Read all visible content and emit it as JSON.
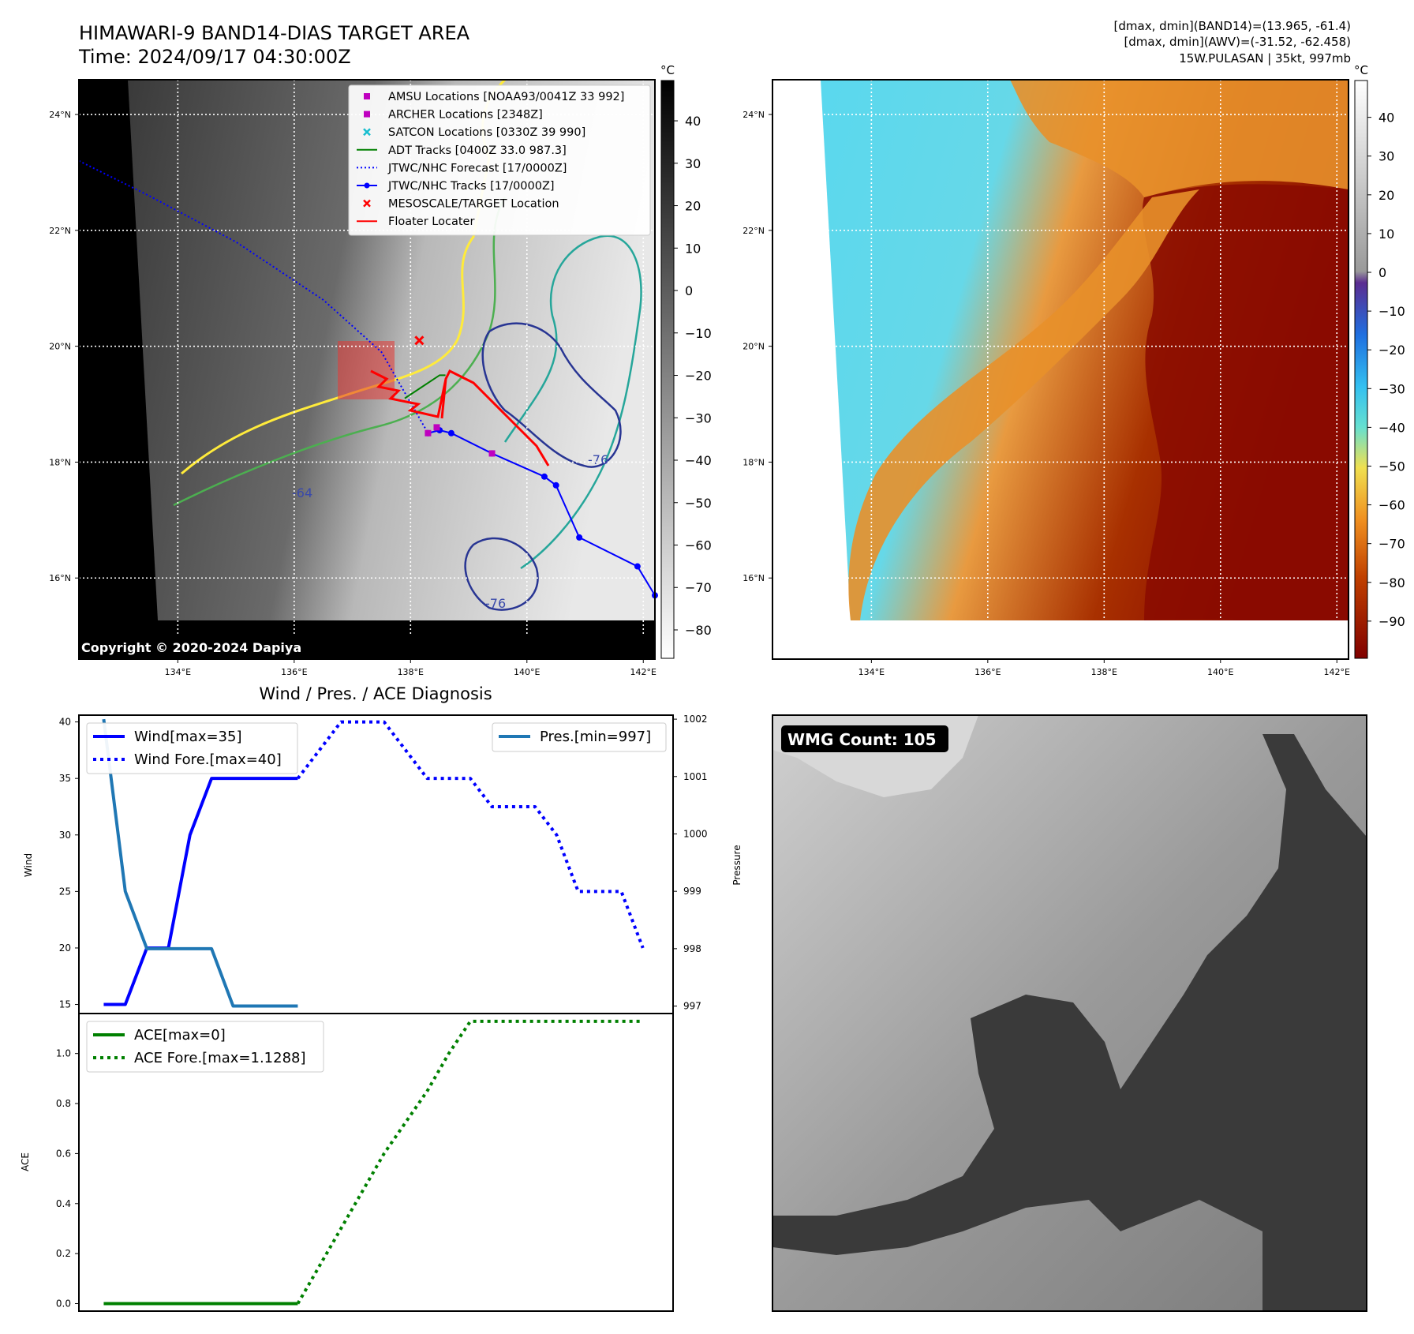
{
  "header": {
    "title_line1": "HIMAWARI-9 BAND14-DIAS TARGET AREA",
    "title_line2": "Time: 2024/09/17 04:30:00Z",
    "stats_line1": "[dmax, dmin](BAND14)=(13.965, -61.4)",
    "stats_line2": "[dmax, dmin](AWV)=(-31.52, -62.458)",
    "stats_line3": "15W.PULASAN | 35kt, 997mb",
    "copyright": "Copyright © 2020-2024 Dapiya"
  },
  "colors": {
    "wind": "#0000ff",
    "pressure": "#1f77b4",
    "ace": "#008000",
    "forecast_track": "#0000ff",
    "adt": "#008000",
    "amsu": "#bf00bf",
    "satcon": "#17becf",
    "target": "#ff0000"
  },
  "chart_data": [
    {
      "type": "heatmap",
      "panel": "ir-greyscale-map",
      "colorbar_unit": "°C",
      "colorbar_ticks": [
        40,
        30,
        20,
        10,
        0,
        -10,
        -20,
        -30,
        -40,
        -50,
        -60,
        -70,
        -80
      ],
      "xticks": [
        "134°E",
        "136°E",
        "138°E",
        "140°E",
        "142°E"
      ],
      "yticks": [
        "24°N",
        "22°N",
        "20°N",
        "18°N",
        "16°N"
      ],
      "xlim": [
        132.3,
        142.2
      ],
      "ylim": [
        14.6,
        24.6
      ],
      "grid": true,
      "legend": {
        "position": "top-right",
        "entries": [
          "AMSU Locations [NOAA93/0041Z 33 992]",
          "ARCHER Locations [2348Z]",
          "SATCON Locations [0330Z 39 990]",
          "ADT Tracks [0400Z 33.0 987.3]",
          "JTWC/NHC Forecast [17/0000Z]",
          "JTWC/NHC Tracks [17/0000Z]",
          "MESOSCALE/TARGET Location",
          "Floater Locater"
        ]
      },
      "jtwc_track": {
        "lon": [
          138.3,
          138.5,
          138.7,
          139.4,
          140.3,
          140.5,
          140.9,
          141.9,
          142.2
        ],
        "lat": [
          18.5,
          18.55,
          18.5,
          18.15,
          17.75,
          17.6,
          16.7,
          16.2,
          15.7
        ]
      },
      "jtwc_forecast": {
        "lon": [
          132.3,
          133.5,
          135.0,
          136.5,
          137.5,
          138.3
        ],
        "lat": [
          23.2,
          22.6,
          21.8,
          20.8,
          19.9,
          18.5
        ]
      },
      "adt_track": {
        "lon": [
          137.9,
          138.2,
          138.5,
          138.6
        ],
        "lat": [
          19.1,
          19.3,
          19.5,
          19.5
        ]
      },
      "amsu": [
        {
          "lon": 138.3,
          "lat": 18.5
        },
        {
          "lon": 139.4,
          "lat": 18.15
        }
      ],
      "archer": [
        {
          "lon": 138.45,
          "lat": 18.6
        }
      ],
      "target": [
        {
          "lon": 138.15,
          "lat": 20.1
        }
      ],
      "contour_labels": [
        "-76",
        "-76",
        "-64"
      ]
    },
    {
      "type": "heatmap",
      "panel": "ir-enhanced-map",
      "colorbar_unit": "°C",
      "colorbar_ticks": [
        40,
        30,
        20,
        10,
        0,
        -10,
        -20,
        -30,
        -40,
        -50,
        -60,
        -70,
        -80,
        -90
      ],
      "xticks": [
        "134°E",
        "136°E",
        "138°E",
        "140°E",
        "142°E"
      ],
      "yticks": [
        "24°N",
        "22°N",
        "20°N",
        "18°N",
        "16°N"
      ],
      "grid": true
    },
    {
      "type": "line",
      "panel": "wind-pressure",
      "title": "Wind / Pres. / ACE Diagnosis",
      "xlabel": "",
      "ylabel": "Wind",
      "y2label": "Pressure",
      "ylim": [
        14.2,
        40.6
      ],
      "y2lim": [
        996.87,
        1002.07
      ],
      "yticks": [
        15,
        20,
        25,
        30,
        35,
        40
      ],
      "y2ticks": [
        997,
        998,
        999,
        1000,
        1001,
        1002
      ],
      "x": [
        0,
        1,
        2,
        3,
        4,
        5,
        6,
        7,
        8,
        9,
        10,
        11,
        12,
        13,
        14,
        15,
        16,
        17,
        18,
        19,
        20,
        21,
        22,
        23,
        24,
        25
      ],
      "series": [
        {
          "name": "Wind[max=35]",
          "axis": "left",
          "style": "solid",
          "x": [
            0,
            1,
            2,
            3,
            4,
            5,
            6,
            7,
            8,
            9
          ],
          "values": [
            15,
            15,
            20,
            20,
            30,
            35,
            35,
            35,
            35,
            35
          ]
        },
        {
          "name": "Wind Fore.[max=40]",
          "axis": "left",
          "style": "dotted",
          "x": [
            9,
            10,
            11,
            12,
            13,
            14,
            15,
            16,
            17,
            18,
            19,
            20,
            21,
            22,
            23,
            24,
            25
          ],
          "values": [
            35,
            37.5,
            40,
            40,
            40,
            37.5,
            35,
            35,
            35,
            32.5,
            32.5,
            32.5,
            30,
            25,
            25,
            25,
            20
          ]
        },
        {
          "name": "Pres.[min=997]",
          "axis": "right",
          "style": "solid",
          "x": [
            0,
            1,
            2,
            3,
            4,
            5,
            6,
            7,
            8,
            9
          ],
          "values": [
            1002,
            999,
            998,
            998,
            998,
            998,
            997,
            997,
            997,
            997
          ]
        }
      ]
    },
    {
      "type": "line",
      "panel": "ace",
      "ylabel": "ACE",
      "ylim": [
        -0.03,
        1.16
      ],
      "yticks": [
        "0.0",
        "0.2",
        "0.4",
        "0.6",
        "0.8",
        "1.0"
      ],
      "series": [
        {
          "name": "ACE[max=0]",
          "style": "solid",
          "x": [
            0,
            9
          ],
          "values": [
            0,
            0
          ]
        },
        {
          "name": "ACE Fore.[max=1.1288]",
          "style": "dotted",
          "x": [
            9,
            11,
            13,
            15,
            16,
            17,
            25
          ],
          "values": [
            0,
            0.3,
            0.6,
            0.85,
            1.0,
            1.1288,
            1.1288
          ]
        }
      ]
    },
    {
      "type": "heatmap",
      "panel": "wmg-count",
      "badge": "WMG Count: 105"
    }
  ]
}
